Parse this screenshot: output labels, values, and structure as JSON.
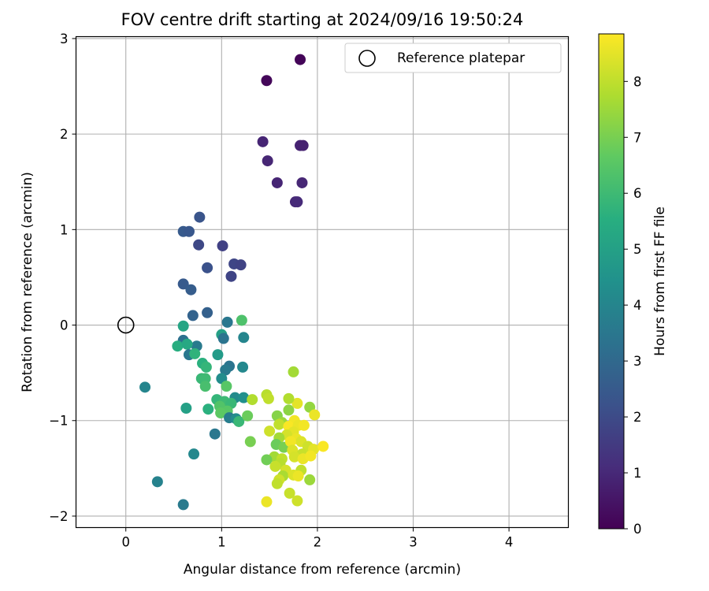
{
  "chart_data": {
    "type": "scatter",
    "title": "FOV centre drift starting at 2024/09/16 19:50:24",
    "xlabel": "Angular distance from reference (arcmin)",
    "ylabel": "Rotation from reference (arcmin)",
    "colorbar_label": "Hours from first FF file",
    "xlim": [
      -0.52,
      4.62
    ],
    "ylim": [
      -2.12,
      3.02
    ],
    "colorbar_range": [
      0,
      8.85
    ],
    "x_ticks": [
      "0",
      "1",
      "2",
      "3",
      "4"
    ],
    "y_ticks": [
      "−2",
      "−1",
      "0",
      "1",
      "2",
      "3"
    ],
    "colorbar_ticks": [
      "0",
      "1",
      "2",
      "3",
      "4",
      "5",
      "6",
      "7",
      "8"
    ],
    "grid": true,
    "legend_position": "top-right",
    "colormap": "viridis",
    "reference": {
      "name": "Reference platepar",
      "x": 0,
      "y": 0
    },
    "points": [
      [
        1.82,
        2.78,
        0.1
      ],
      [
        1.47,
        2.56,
        0.15
      ],
      [
        1.43,
        1.92,
        0.9
      ],
      [
        1.48,
        1.72,
        0.95
      ],
      [
        1.82,
        1.88,
        0.85
      ],
      [
        1.85,
        1.88,
        0.8
      ],
      [
        1.58,
        1.49,
        0.9
      ],
      [
        1.84,
        1.49,
        0.95
      ],
      [
        1.77,
        1.29,
        1.0
      ],
      [
        1.79,
        1.29,
        1.05
      ],
      [
        0.77,
        1.13,
        2.3
      ],
      [
        0.6,
        0.98,
        2.5
      ],
      [
        0.66,
        0.98,
        2.4
      ],
      [
        0.76,
        0.84,
        1.9
      ],
      [
        1.01,
        0.83,
        1.7
      ],
      [
        1.13,
        0.64,
        1.85
      ],
      [
        1.2,
        0.63,
        1.75
      ],
      [
        0.85,
        0.6,
        2.2
      ],
      [
        1.1,
        0.51,
        1.8
      ],
      [
        0.6,
        0.43,
        2.5
      ],
      [
        0.68,
        0.37,
        2.6
      ],
      [
        0.85,
        0.13,
        2.7
      ],
      [
        0.7,
        0.1,
        2.8
      ],
      [
        1.06,
        0.03,
        3.5
      ],
      [
        1.21,
        0.05,
        6.3
      ],
      [
        0.6,
        -0.01,
        5.2
      ],
      [
        1.0,
        -0.1,
        5.0
      ],
      [
        0.6,
        -0.16,
        3.3
      ],
      [
        1.02,
        -0.14,
        3.4
      ],
      [
        1.23,
        -0.13,
        4.0
      ],
      [
        0.74,
        -0.22,
        3.6
      ],
      [
        0.54,
        -0.22,
        5.5
      ],
      [
        0.64,
        -0.2,
        5.3
      ],
      [
        0.66,
        -0.31,
        3.5
      ],
      [
        0.72,
        -0.3,
        5.7
      ],
      [
        0.96,
        -0.31,
        4.8
      ],
      [
        0.8,
        -0.4,
        5.6
      ],
      [
        0.84,
        -0.44,
        5.8
      ],
      [
        1.08,
        -0.43,
        3.4
      ],
      [
        1.04,
        -0.47,
        3.6
      ],
      [
        1.22,
        -0.44,
        4.1
      ],
      [
        0.79,
        -0.56,
        5.9
      ],
      [
        0.83,
        -0.56,
        6.0
      ],
      [
        1.0,
        -0.56,
        4.3
      ],
      [
        1.05,
        -0.64,
        6.5
      ],
      [
        0.83,
        -0.64,
        6.2
      ],
      [
        0.2,
        -0.65,
        4.0
      ],
      [
        1.14,
        -0.76,
        4.2
      ],
      [
        1.23,
        -0.76,
        4.4
      ],
      [
        1.32,
        -0.78,
        7.8
      ],
      [
        0.95,
        -0.78,
        5.8
      ],
      [
        1.03,
        -0.8,
        6.0
      ],
      [
        1.1,
        -0.82,
        5.9
      ],
      [
        0.98,
        -0.85,
        6.4
      ],
      [
        0.86,
        -0.88,
        5.6
      ],
      [
        0.63,
        -0.87,
        5.0
      ],
      [
        1.06,
        -0.9,
        6.5
      ],
      [
        0.99,
        -0.92,
        6.6
      ],
      [
        1.08,
        -0.97,
        3.7
      ],
      [
        1.15,
        -0.98,
        4.3
      ],
      [
        1.18,
        -1.01,
        5.9
      ],
      [
        1.27,
        -0.95,
        6.8
      ],
      [
        0.93,
        -1.14,
        3.5
      ],
      [
        1.3,
        -1.22,
        7.0
      ],
      [
        0.71,
        -1.35,
        4.1
      ],
      [
        0.33,
        -1.64,
        3.9
      ],
      [
        0.6,
        -1.88,
        3.6
      ],
      [
        1.47,
        -0.73,
        7.9
      ],
      [
        1.49,
        -0.77,
        8.0
      ],
      [
        1.75,
        -0.49,
        7.6
      ],
      [
        1.79,
        -0.82,
        8.5
      ],
      [
        1.7,
        -0.77,
        7.8
      ],
      [
        1.92,
        -0.86,
        7.4
      ],
      [
        1.97,
        -0.94,
        8.6
      ],
      [
        1.58,
        -0.95,
        7.2
      ],
      [
        1.7,
        -0.89,
        7.3
      ],
      [
        1.63,
        -1.02,
        7.5
      ],
      [
        1.5,
        -1.11,
        8.2
      ],
      [
        1.6,
        -1.04,
        8.0
      ],
      [
        1.76,
        -1.0,
        8.7
      ],
      [
        1.7,
        -1.06,
        8.8
      ],
      [
        1.8,
        -1.05,
        8.6
      ],
      [
        1.86,
        -1.05,
        8.7
      ],
      [
        1.75,
        -1.12,
        8.5
      ],
      [
        1.68,
        -1.15,
        8.3
      ],
      [
        1.78,
        -1.19,
        8.6
      ],
      [
        1.83,
        -1.22,
        8.4
      ],
      [
        1.6,
        -1.18,
        7.6
      ],
      [
        1.57,
        -1.25,
        6.8
      ],
      [
        1.65,
        -1.28,
        7.0
      ],
      [
        1.72,
        -1.22,
        8.7
      ],
      [
        1.74,
        -1.31,
        8.4
      ],
      [
        1.9,
        -1.27,
        8.2
      ],
      [
        1.96,
        -1.3,
        8.5
      ],
      [
        2.06,
        -1.27,
        8.8
      ],
      [
        1.84,
        -1.35,
        8.1
      ],
      [
        1.76,
        -1.38,
        8.3
      ],
      [
        1.85,
        -1.4,
        8.6
      ],
      [
        1.93,
        -1.37,
        8.7
      ],
      [
        1.55,
        -1.38,
        7.6
      ],
      [
        1.63,
        -1.4,
        8.0
      ],
      [
        1.47,
        -1.41,
        6.9
      ],
      [
        1.61,
        -1.45,
        7.9
      ],
      [
        1.56,
        -1.48,
        8.1
      ],
      [
        1.67,
        -1.52,
        8.3
      ],
      [
        1.83,
        -1.52,
        8.0
      ],
      [
        1.64,
        -1.58,
        7.7
      ],
      [
        1.75,
        -1.57,
        8.4
      ],
      [
        1.8,
        -1.58,
        8.6
      ],
      [
        1.6,
        -1.62,
        8.2
      ],
      [
        1.58,
        -1.66,
        8.0
      ],
      [
        1.92,
        -1.62,
        7.5
      ],
      [
        1.71,
        -1.76,
        8.1
      ],
      [
        1.79,
        -1.84,
        8.2
      ],
      [
        1.47,
        -1.85,
        8.6
      ]
    ]
  }
}
